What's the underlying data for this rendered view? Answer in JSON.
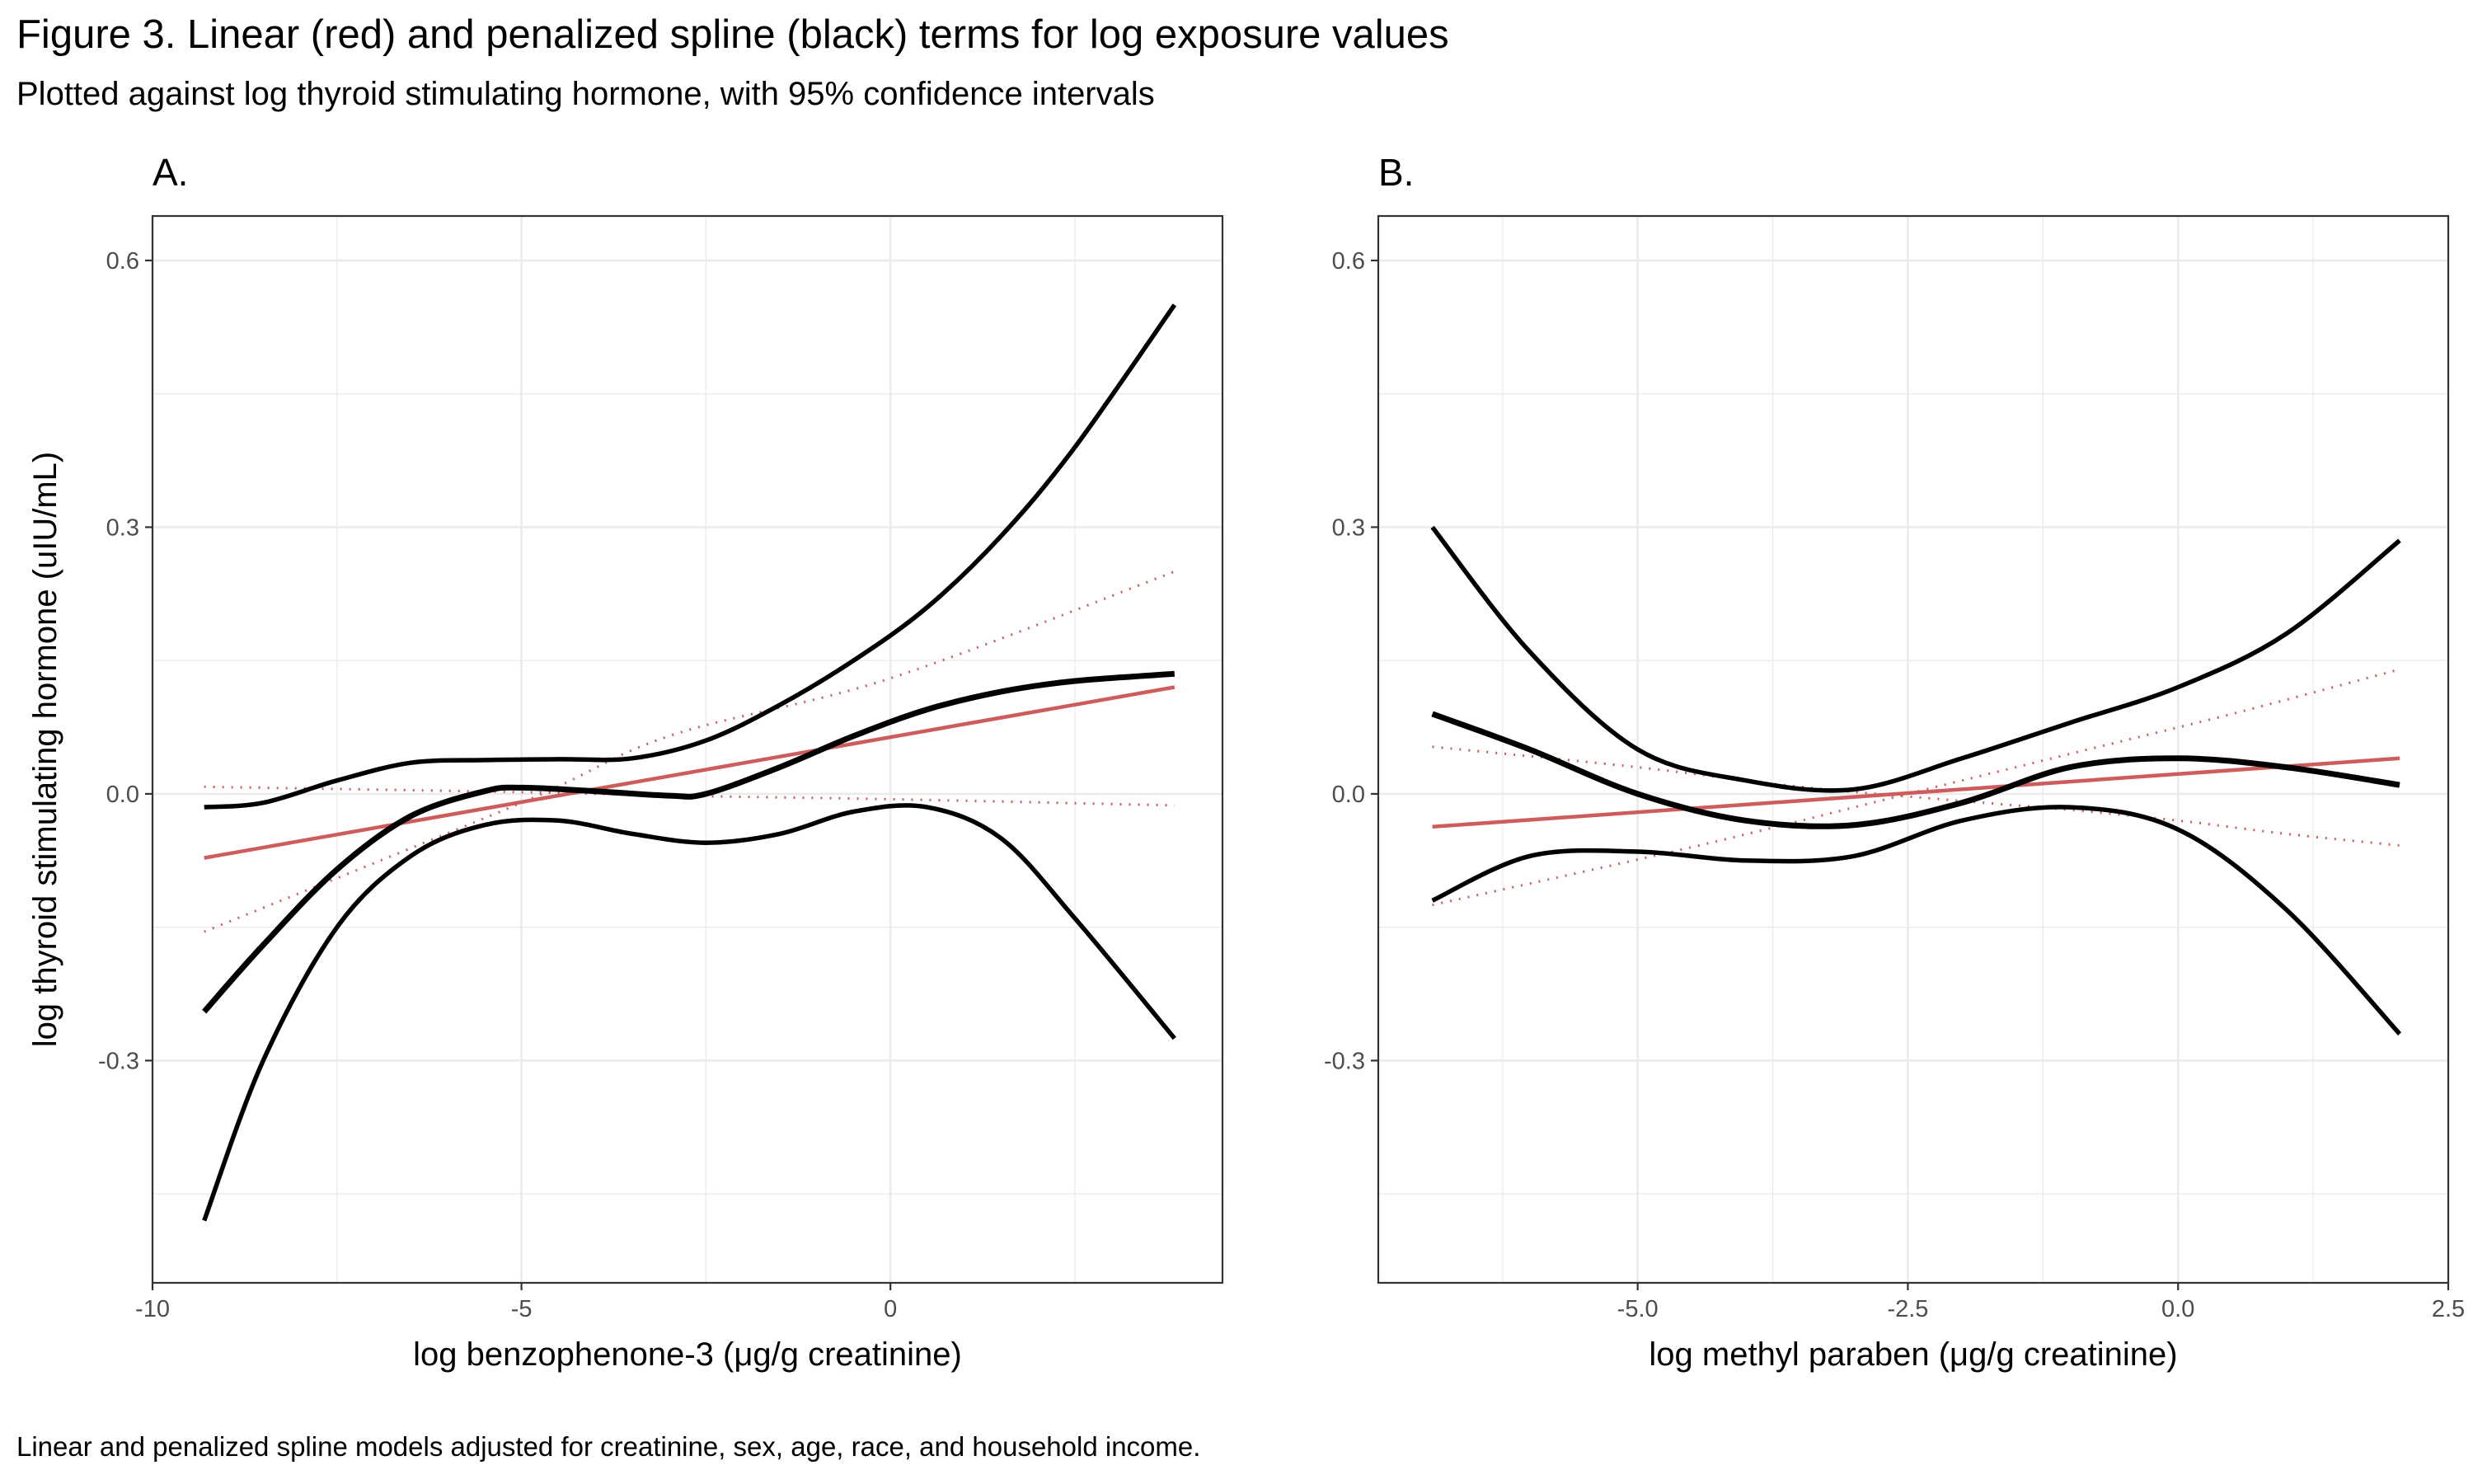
{
  "title": "Figure 3. Linear (red) and penalized spline (black) terms for log exposure values",
  "subtitle": "Plotted against log thyroid stimulating hormone, with 95% confidence intervals",
  "caption": "Linear and penalized spline models adjusted for creatinine, sex, age, race, and household income.",
  "colors": {
    "linear": "#cd5c5c",
    "spline": "#000000",
    "grid": "#ebebeb",
    "panel_border": "#333333"
  },
  "chart_data": [
    {
      "type": "line",
      "panel_label": "A.",
      "xlabel": "log benzophenone-3 (μg/g creatinine)",
      "ylabel": "log thyroid stimulating hormone (uIU/mL)",
      "xlim": [
        -10,
        4.5
      ],
      "ylim": [
        -0.55,
        0.65
      ],
      "x_ticks": [
        -10,
        -5,
        0
      ],
      "x_tick_labels": [
        "-10",
        "-5",
        "0"
      ],
      "y_ticks": [
        -0.3,
        0.0,
        0.3,
        0.6
      ],
      "y_tick_labels": [
        "-0.3",
        "0.0",
        "0.3",
        "0.6"
      ],
      "grid": true,
      "legend": "none",
      "series": [
        {
          "role": "linear-fit",
          "style": "solid-red",
          "x": [
            -9.3,
            3.85
          ],
          "y": [
            -0.072,
            0.12
          ]
        },
        {
          "role": "linear-ci-upper",
          "style": "dotted-red",
          "x": [
            -9.3,
            -5,
            -3,
            0,
            3.85
          ],
          "y": [
            -0.155,
            -0.01,
            0.065,
            0.13,
            0.25
          ]
        },
        {
          "role": "linear-ci-lower",
          "style": "dotted-red",
          "x": [
            -9.3,
            -5,
            -3,
            0,
            3.85
          ],
          "y": [
            0.008,
            0.002,
            -0.002,
            -0.006,
            -0.013
          ]
        },
        {
          "role": "spline-fit",
          "style": "thick-black",
          "x": [
            -9.3,
            -8.5,
            -7.5,
            -6.5,
            -5.5,
            -5.0,
            -4.0,
            -3.0,
            -2.5,
            -1.5,
            -0.5,
            0.5,
            1.5,
            2.5,
            3.85
          ],
          "y": [
            -0.245,
            -0.17,
            -0.085,
            -0.025,
            0.003,
            0.007,
            0.003,
            -0.002,
            0.0,
            0.03,
            0.065,
            0.095,
            0.115,
            0.127,
            0.135
          ]
        },
        {
          "role": "spline-ci-upper",
          "style": "black",
          "x": [
            -9.3,
            -8.5,
            -7.5,
            -6.5,
            -5.5,
            -4.5,
            -3.5,
            -2.5,
            -1.5,
            -0.5,
            0.5,
            1.5,
            2.5,
            3.85
          ],
          "y": [
            -0.015,
            -0.01,
            0.015,
            0.035,
            0.038,
            0.039,
            0.04,
            0.06,
            0.1,
            0.15,
            0.21,
            0.29,
            0.39,
            0.55
          ]
        },
        {
          "role": "spline-ci-lower",
          "style": "black",
          "x": [
            -9.3,
            -8.5,
            -7.5,
            -6.5,
            -5.5,
            -4.5,
            -3.5,
            -2.5,
            -1.5,
            -0.5,
            0.5,
            1.5,
            2.5,
            3.85
          ],
          "y": [
            -0.48,
            -0.3,
            -0.15,
            -0.07,
            -0.035,
            -0.03,
            -0.045,
            -0.055,
            -0.045,
            -0.02,
            -0.015,
            -0.05,
            -0.14,
            -0.275
          ]
        }
      ]
    },
    {
      "type": "line",
      "panel_label": "B.",
      "xlabel": "log methyl paraben (μg/g creatinine)",
      "ylabel": "",
      "xlim": [
        -7.4,
        2.5
      ],
      "ylim": [
        -0.55,
        0.65
      ],
      "x_ticks": [
        -5.0,
        -2.5,
        0.0,
        2.5
      ],
      "x_tick_labels": [
        "-5.0",
        "-2.5",
        "0.0",
        "2.5"
      ],
      "y_ticks": [
        -0.3,
        0.0,
        0.3,
        0.6
      ],
      "y_tick_labels": [
        "-0.3",
        "0.0",
        "0.3",
        "0.6"
      ],
      "grid": true,
      "legend": "none",
      "series": [
        {
          "role": "linear-fit",
          "style": "solid-red",
          "x": [
            -6.9,
            2.05
          ],
          "y": [
            -0.037,
            0.04
          ]
        },
        {
          "role": "linear-ci-upper",
          "style": "dotted-red",
          "x": [
            -6.9,
            -4.5,
            -2.5,
            -1.0,
            0.5,
            2.05
          ],
          "y": [
            -0.125,
            -0.06,
            0.0,
            0.045,
            0.09,
            0.14
          ]
        },
        {
          "role": "linear-ci-lower",
          "style": "dotted-red",
          "x": [
            -6.9,
            -5.0,
            -3.5,
            -2.0,
            -1.0,
            0.0,
            1.0,
            2.05
          ],
          "y": [
            0.053,
            0.03,
            0.008,
            -0.008,
            -0.018,
            -0.03,
            -0.045,
            -0.058
          ]
        },
        {
          "role": "spline-fit",
          "style": "thick-black",
          "x": [
            -6.9,
            -6.0,
            -5.0,
            -4.0,
            -3.0,
            -2.0,
            -1.0,
            0.0,
            1.0,
            2.05
          ],
          "y": [
            0.09,
            0.05,
            0.0,
            -0.03,
            -0.035,
            -0.01,
            0.03,
            0.04,
            0.03,
            0.01
          ]
        },
        {
          "role": "spline-ci-upper",
          "style": "black",
          "x": [
            -6.9,
            -6.0,
            -5.0,
            -4.0,
            -3.0,
            -2.0,
            -1.0,
            0.0,
            1.0,
            2.05
          ],
          "y": [
            0.3,
            0.16,
            0.05,
            0.015,
            0.005,
            0.04,
            0.08,
            0.12,
            0.18,
            0.285
          ]
        },
        {
          "role": "spline-ci-lower",
          "style": "black",
          "x": [
            -6.9,
            -6.0,
            -5.0,
            -4.0,
            -3.0,
            -2.0,
            -1.0,
            0.0,
            1.0,
            2.05
          ],
          "y": [
            -0.12,
            -0.07,
            -0.065,
            -0.075,
            -0.07,
            -0.03,
            -0.015,
            -0.04,
            -0.13,
            -0.27
          ]
        }
      ]
    }
  ]
}
